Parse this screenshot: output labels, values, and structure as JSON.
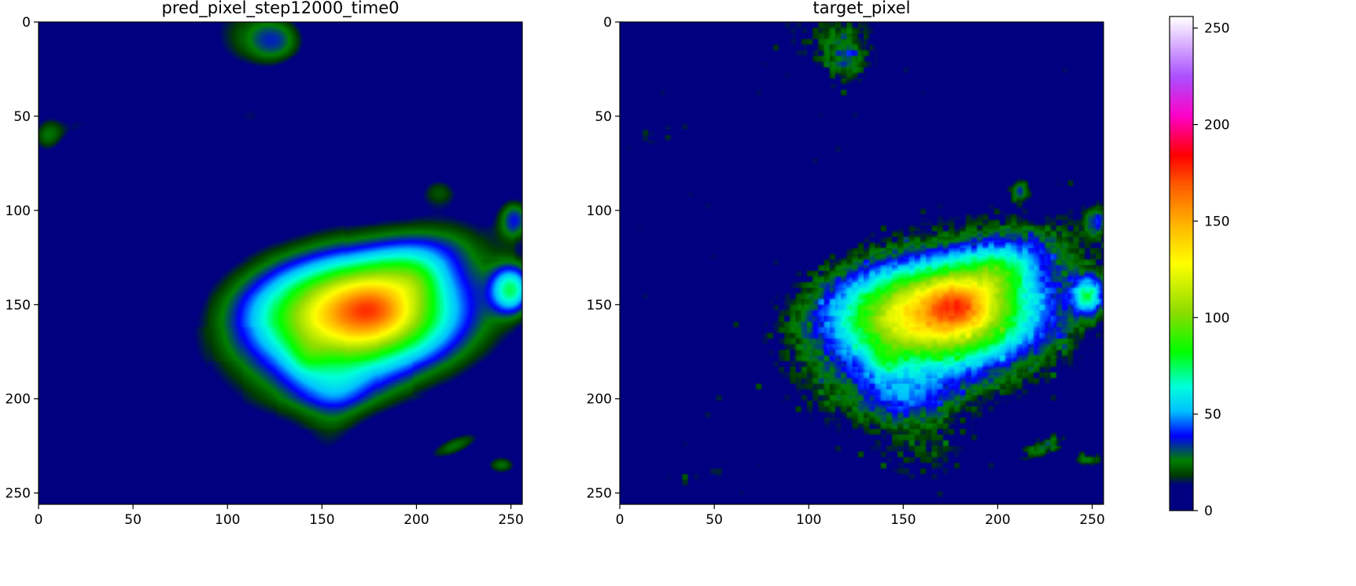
{
  "chart_data": [
    {
      "type": "heatmap",
      "title": "pred_pixel_step12000_time0",
      "xlabel": "",
      "ylabel": "",
      "x_ticks": [
        "0",
        "50",
        "100",
        "150",
        "200",
        "250"
      ],
      "y_ticks": [
        "0",
        "50",
        "100",
        "150",
        "200",
        "250"
      ],
      "xlim": [
        0,
        256
      ],
      "ylim": [
        256,
        0
      ],
      "grid": false,
      "field": {
        "smooth": true,
        "blobs": [
          {
            "x": 165,
            "y": 155,
            "rx": 48,
            "ry": 26,
            "a": 0,
            "v": 105
          },
          {
            "x": 178,
            "y": 152,
            "rx": 20,
            "ry": 14,
            "a": 0,
            "v": 35
          },
          {
            "x": 142,
            "y": 178,
            "rx": 10,
            "ry": 10,
            "a": 0,
            "v": 15
          },
          {
            "x": 200,
            "y": 138,
            "rx": 12,
            "ry": 10,
            "a": 0,
            "v": 15
          },
          {
            "x": 172,
            "y": 158,
            "rx": 72,
            "ry": 40,
            "a": -0.35,
            "v": 40
          },
          {
            "x": 195,
            "y": 128,
            "rx": 30,
            "ry": 14,
            "a": -0.3,
            "v": 22
          },
          {
            "x": 155,
            "y": 195,
            "rx": 25,
            "ry": 12,
            "a": 0,
            "v": 18
          },
          {
            "x": 250,
            "y": 142,
            "rx": 10,
            "ry": 12,
            "a": 0,
            "v": 60
          },
          {
            "x": 252,
            "y": 105,
            "rx": 8,
            "ry": 10,
            "a": 0,
            "v": 30
          },
          {
            "x": 220,
            "y": 225,
            "rx": 16,
            "ry": 5,
            "a": -0.4,
            "v": 22
          },
          {
            "x": 245,
            "y": 235,
            "rx": 8,
            "ry": 5,
            "a": 0,
            "v": 22
          },
          {
            "x": 212,
            "y": 90,
            "rx": 10,
            "ry": 8,
            "a": 0,
            "v": 15
          },
          {
            "x": 108,
            "y": 5,
            "rx": 25,
            "ry": 25,
            "a": 0,
            "v": 14
          },
          {
            "x": 112,
            "y": 50,
            "rx": 14,
            "ry": 10,
            "a": 0,
            "v": 12
          },
          {
            "x": 20,
            "y": 55,
            "rx": 30,
            "ry": 8,
            "a": -0.3,
            "v": 12
          },
          {
            "x": 5,
            "y": 60,
            "rx": 8,
            "ry": 12,
            "a": 0,
            "v": 15
          },
          {
            "x": 125,
            "y": 10,
            "rx": 15,
            "ry": 12,
            "a": 0,
            "v": 25
          },
          {
            "x": 155,
            "y": 215,
            "rx": 15,
            "ry": 35,
            "a": 0.2,
            "v": 10
          },
          {
            "x": 40,
            "y": 242,
            "rx": 40,
            "ry": 10,
            "a": -0.2,
            "v": 10
          }
        ]
      }
    },
    {
      "type": "heatmap",
      "title": "target_pixel",
      "xlabel": "",
      "ylabel": "",
      "x_ticks": [
        "0",
        "50",
        "100",
        "150",
        "200",
        "250"
      ],
      "y_ticks": [
        "0",
        "50",
        "100",
        "150",
        "200",
        "250"
      ],
      "xlim": [
        0,
        256
      ],
      "ylim": [
        256,
        0
      ],
      "grid": false,
      "field": {
        "smooth": false,
        "blobs": [
          {
            "x": 165,
            "y": 155,
            "rx": 48,
            "ry": 24,
            "a": 0,
            "v": 100
          },
          {
            "x": 180,
            "y": 150,
            "rx": 16,
            "ry": 12,
            "a": 0,
            "v": 40
          },
          {
            "x": 140,
            "y": 180,
            "rx": 8,
            "ry": 8,
            "a": 0,
            "v": 20
          },
          {
            "x": 200,
            "y": 135,
            "rx": 12,
            "ry": 10,
            "a": 0,
            "v": 18
          },
          {
            "x": 172,
            "y": 158,
            "rx": 74,
            "ry": 40,
            "a": -0.35,
            "v": 45
          },
          {
            "x": 200,
            "y": 128,
            "rx": 32,
            "ry": 14,
            "a": -0.3,
            "v": 25
          },
          {
            "x": 150,
            "y": 200,
            "rx": 28,
            "ry": 14,
            "a": 0,
            "v": 22
          },
          {
            "x": 248,
            "y": 145,
            "rx": 8,
            "ry": 10,
            "a": 0,
            "v": 55
          },
          {
            "x": 252,
            "y": 105,
            "rx": 6,
            "ry": 8,
            "a": 0,
            "v": 30
          },
          {
            "x": 225,
            "y": 225,
            "rx": 14,
            "ry": 5,
            "a": -0.4,
            "v": 25
          },
          {
            "x": 248,
            "y": 232,
            "rx": 8,
            "ry": 5,
            "a": 0,
            "v": 22
          },
          {
            "x": 212,
            "y": 90,
            "rx": 5,
            "ry": 6,
            "a": 0,
            "v": 25
          },
          {
            "x": 108,
            "y": 5,
            "rx": 28,
            "ry": 22,
            "a": 0,
            "v": 14
          },
          {
            "x": 120,
            "y": 20,
            "rx": 12,
            "ry": 15,
            "a": 0,
            "v": 22
          },
          {
            "x": 20,
            "y": 60,
            "rx": 28,
            "ry": 8,
            "a": -0.3,
            "v": 12
          },
          {
            "x": 160,
            "y": 230,
            "rx": 25,
            "ry": 20,
            "a": 0,
            "v": 12
          },
          {
            "x": 40,
            "y": 240,
            "rx": 40,
            "ry": 12,
            "a": -0.2,
            "v": 9
          }
        ]
      }
    }
  ],
  "colorbar": {
    "cmap": "gist_ncar",
    "ticks": [
      "0",
      "50",
      "100",
      "150",
      "200",
      "250"
    ],
    "vmin": 0,
    "vmax": 256
  }
}
